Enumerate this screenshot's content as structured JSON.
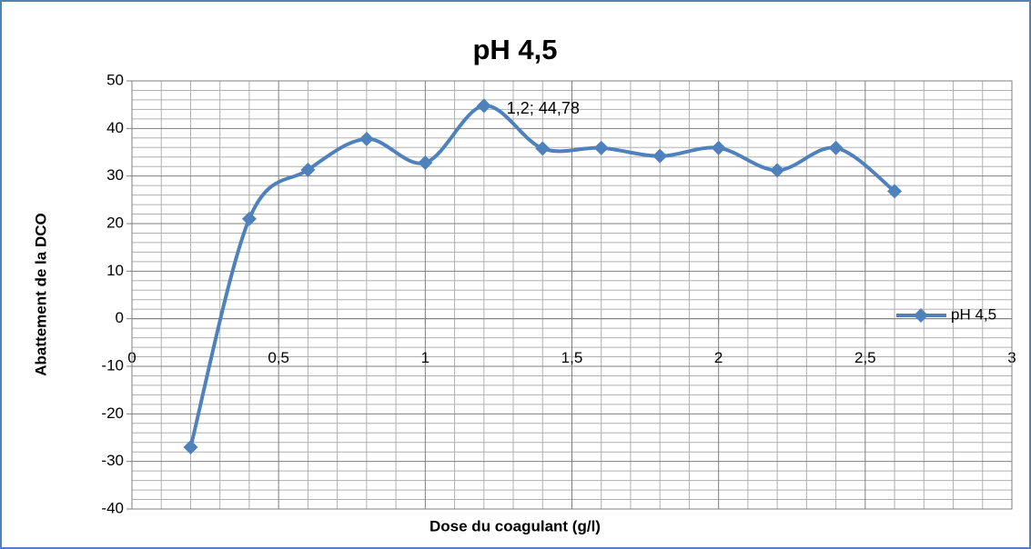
{
  "chart_data": {
    "type": "line",
    "title": "pH 4,5",
    "x_label": "Dose du coagulant (g/l)",
    "y_label": "Abattement de la DCO",
    "x": [
      0.2,
      0.4,
      0.6,
      0.8,
      1.0,
      1.2,
      1.4,
      1.6,
      1.8,
      2.0,
      2.2,
      2.4,
      2.6
    ],
    "series": [
      {
        "name": "pH 4,5",
        "color": "#4f81bd",
        "values": [
          -27,
          21,
          31.3,
          37.8,
          32.8,
          44.78,
          35.8,
          35.9,
          34.2,
          35.9,
          31.2,
          35.9,
          26.8
        ],
        "value_labels": [
          null,
          null,
          null,
          null,
          null,
          "1,2; 44,78",
          null,
          null,
          null,
          null,
          null,
          null,
          null
        ]
      }
    ],
    "xlim": [
      0,
      3
    ],
    "xticks": [
      0,
      {
        "value": 0.5,
        "label": "0,5"
      },
      1,
      {
        "value": 1.5,
        "label": "1,5"
      },
      2,
      {
        "value": 2.5,
        "label": "2,5"
      },
      3
    ],
    "ylim": [
      -40,
      50
    ],
    "yticks": [
      -40,
      -30,
      -20,
      -10,
      0,
      10,
      20,
      30,
      40,
      50
    ],
    "grid": true,
    "minor_grid": true,
    "legend": "right",
    "smooth": true
  }
}
